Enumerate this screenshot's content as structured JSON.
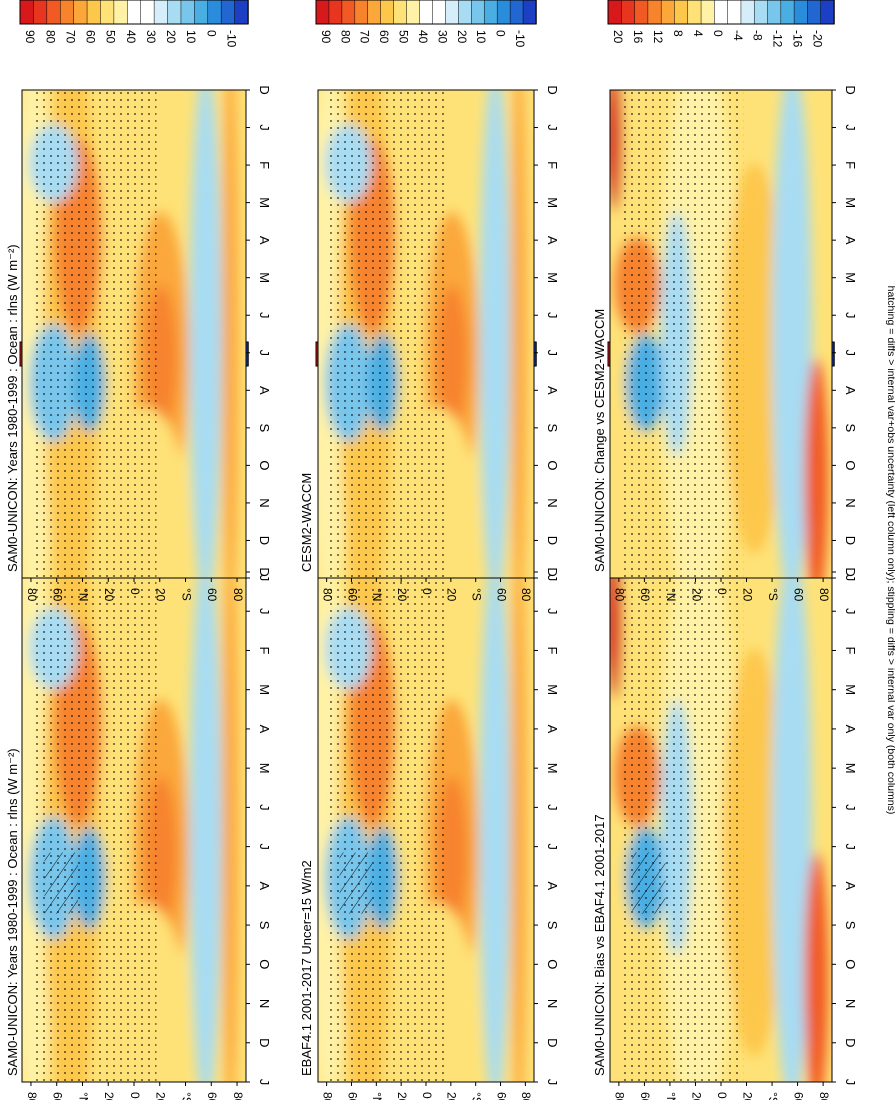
{
  "footnote": "hatching = diffs > internal var+obs uncertainty (left column only); stippling = diffs > internal var only (both columns)",
  "colors": {
    "full": [
      "#d7191c",
      "#e8351f",
      "#f15a24",
      "#f7832d",
      "#fba73a",
      "#fdc74c",
      "#fee277",
      "#fff2a6",
      "#ffffff",
      "#ffffff",
      "#d5eef9",
      "#a7dcf3",
      "#78c6ec",
      "#4aaee3",
      "#2a8ddb",
      "#2166d1",
      "#1c3fc4"
    ],
    "anom": [
      "#d7191c",
      "#e8351f",
      "#f15a24",
      "#f7832d",
      "#fba73a",
      "#fdc74c",
      "#fee277",
      "#fff2a6",
      "#ffffff",
      "#ffffff",
      "#d5eef9",
      "#a7dcf3",
      "#78c6ec",
      "#4aaee3",
      "#2a8ddb",
      "#2166d1",
      "#1c3fc4"
    ]
  },
  "chart_data": [
    {
      "type": "heatmap",
      "title": "SAM0-UNICON: Years 1980-1999 : Ocean : rlns (W m⁻²)",
      "x_ticks": [
        "D",
        "J",
        "F",
        "M",
        "A",
        "M",
        "J",
        "J",
        "A",
        "S",
        "O",
        "N",
        "D",
        "J"
      ],
      "y_ticks": [
        "80",
        "60",
        "°N",
        "20",
        "0",
        "20",
        "°S",
        "60",
        "80"
      ],
      "colorbar": {
        "labels": [
          "90",
          "80",
          "70",
          "60",
          "50",
          "40",
          "30",
          "20",
          "10",
          "0",
          "-10"
        ],
        "palette": "full"
      },
      "hatching": true,
      "stippling": true
    },
    {
      "type": "heatmap",
      "title": "SAM0-UNICON: Years 1980-1999 : Ocean : rlns (W m⁻²)",
      "x_ticks": [
        "D",
        "J",
        "F",
        "M",
        "A",
        "M",
        "J",
        "J",
        "A",
        "S",
        "O",
        "N",
        "D",
        "J"
      ],
      "y_ticks": [
        "80",
        "60",
        "°N",
        "20",
        "0",
        "20",
        "°S",
        "60",
        "80"
      ],
      "colorbar": {
        "labels": [
          "90",
          "80",
          "70",
          "60",
          "50",
          "40",
          "30",
          "20",
          "10",
          "0",
          "-10"
        ],
        "palette": "full"
      },
      "hatching": false,
      "stippling": true
    },
    {
      "type": "heatmap",
      "title": "EBAF4.1 2001-2017 Uncer=15 W/m2",
      "x_ticks": [
        "D",
        "J",
        "F",
        "M",
        "A",
        "M",
        "J",
        "J",
        "A",
        "S",
        "O",
        "N",
        "D",
        "J"
      ],
      "y_ticks": [
        "80",
        "60",
        "°N",
        "20",
        "0",
        "20",
        "°S",
        "60",
        "80"
      ],
      "colorbar": {
        "labels": [
          "90",
          "80",
          "70",
          "60",
          "50",
          "40",
          "30",
          "20",
          "10",
          "0",
          "-10"
        ],
        "palette": "full"
      },
      "hatching": true,
      "stippling": true
    },
    {
      "type": "heatmap",
      "title": "CESM2-WACCM",
      "x_ticks": [
        "D",
        "J",
        "F",
        "M",
        "A",
        "M",
        "J",
        "J",
        "A",
        "S",
        "O",
        "N",
        "D",
        "J"
      ],
      "y_ticks": [
        "80",
        "60",
        "°N",
        "20",
        "0",
        "20",
        "°S",
        "60",
        "80"
      ],
      "colorbar": {
        "labels": [
          "90",
          "80",
          "70",
          "60",
          "50",
          "40",
          "30",
          "20",
          "10",
          "0",
          "-10"
        ],
        "palette": "full"
      },
      "hatching": false,
      "stippling": true
    },
    {
      "type": "heatmap",
      "title": "SAM0-UNICON: Bias vs EBAF4.1 2001-2017",
      "x_ticks": [
        "D",
        "J",
        "F",
        "M",
        "A",
        "M",
        "J",
        "J",
        "A",
        "S",
        "O",
        "N",
        "D",
        "J"
      ],
      "y_ticks": [
        "80",
        "60",
        "°N",
        "20",
        "0",
        "20",
        "°S",
        "60",
        "80"
      ],
      "colorbar": {
        "labels": [
          "20",
          "16",
          "12",
          "8",
          "4",
          "0",
          "-4",
          "-8",
          "-12",
          "-16",
          "-20"
        ],
        "palette": "anom"
      },
      "hatching": true,
      "stippling": true
    },
    {
      "type": "heatmap",
      "title": "SAM0-UNICON: Change vs CESM2-WACCM",
      "x_ticks": [
        "D",
        "J",
        "F",
        "M",
        "A",
        "M",
        "J",
        "J",
        "A",
        "S",
        "O",
        "N",
        "D",
        "J"
      ],
      "y_ticks": [
        "80",
        "60",
        "°N",
        "20",
        "0",
        "20",
        "°S",
        "60",
        "80"
      ],
      "colorbar": {
        "labels": [
          "20",
          "16",
          "12",
          "8",
          "4",
          "0",
          "-4",
          "-8",
          "-12",
          "-16",
          "-20"
        ],
        "palette": "anom"
      },
      "hatching": false,
      "stippling": true
    }
  ]
}
